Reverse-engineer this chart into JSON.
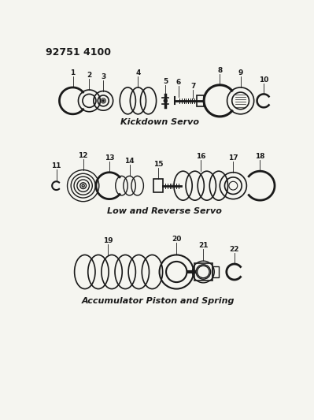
{
  "title": "92751 4100",
  "bg_color": "#f5f5f0",
  "line_color": "#1a1a1a",
  "section1_label": "Kickdown Servo",
  "section2_label": "Low and Reverse Servo",
  "section3_label": "Accumulator Piston and Spring",
  "figw": 3.99,
  "figh": 5.33,
  "dpi": 100
}
